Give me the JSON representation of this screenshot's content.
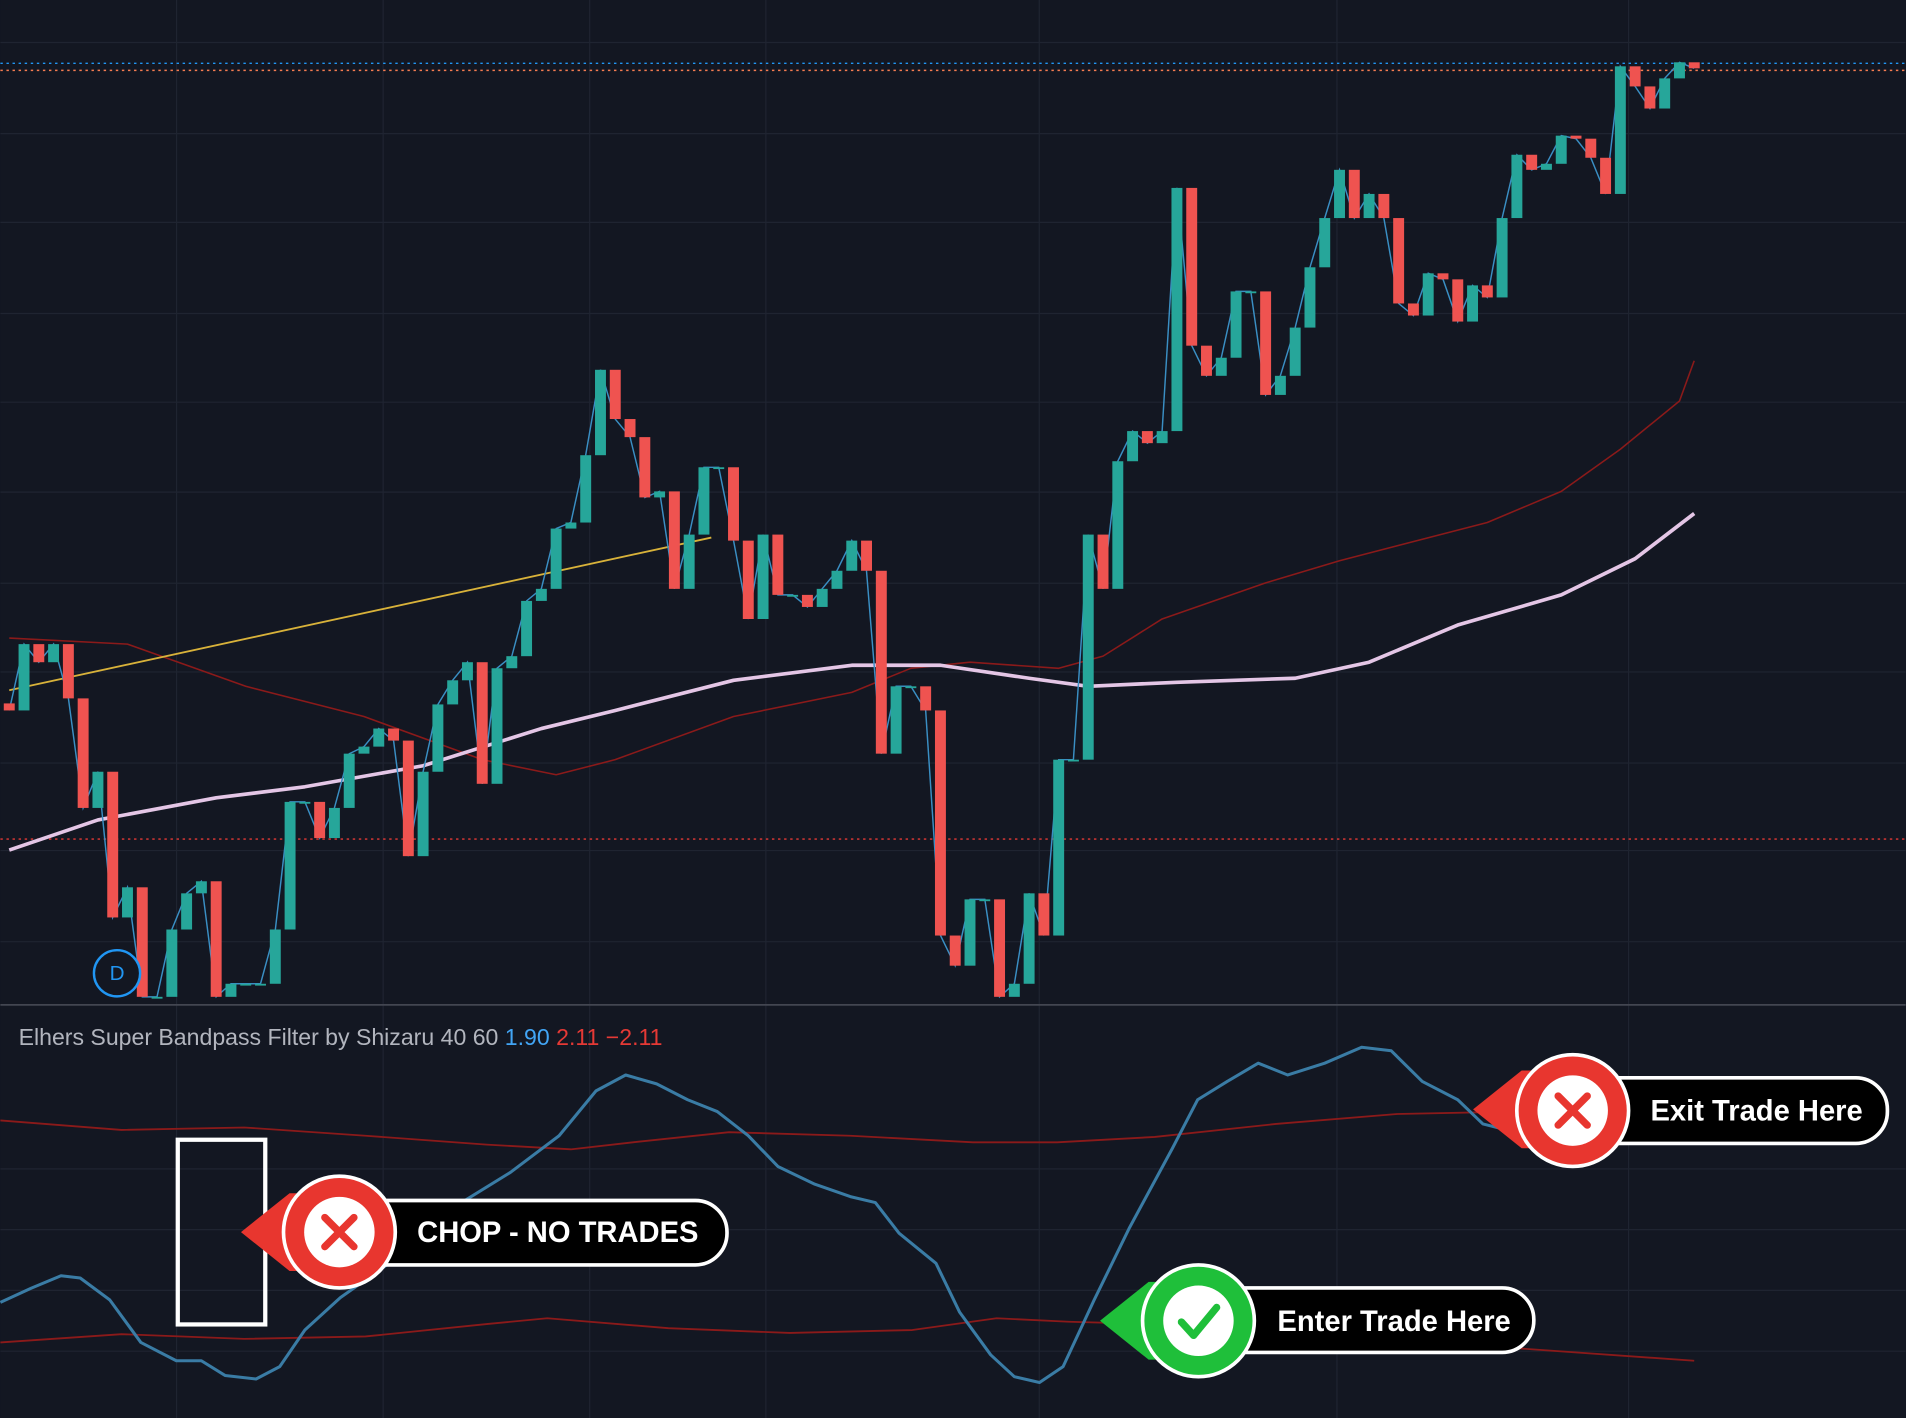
{
  "chart_data": [
    {
      "type": "candlestick",
      "xlim": [
        -0.6,
        128.3
      ],
      "ylim": [
        0,
        100
      ],
      "up_color": "#26a69a",
      "down_color": "#ef5350",
      "close_line_color": "#3a8fc4",
      "open": [
        30.0,
        29.3,
        35.9,
        34.1,
        35.9,
        30.5,
        19.6,
        23.2,
        8.7,
        11.7,
        0.8,
        0.8,
        7.5,
        11.1,
        12.3,
        0.8,
        2.1,
        2.1,
        2.1,
        7.5,
        20.2,
        20.2,
        16.6,
        19.6,
        25.0,
        25.7,
        27.5,
        26.3,
        14.8,
        23.2,
        29.9,
        32.3,
        34.1,
        22.0,
        33.5,
        34.7,
        40.2,
        41.4,
        47.4,
        48.0,
        54.7,
        63.2,
        58.3,
        56.5,
        50.5,
        51.1,
        41.4,
        46.8,
        53.5,
        53.5,
        46.2,
        38.4,
        46.8,
        40.8,
        40.8,
        39.6,
        41.4,
        43.2,
        46.2,
        43.2,
        25.0,
        31.7,
        31.7,
        29.3,
        6.9,
        3.9,
        10.5,
        10.5,
        0.8,
        2.1,
        11.1,
        6.9,
        24.4,
        24.4,
        46.8,
        41.4,
        54.1,
        57.1,
        55.9,
        57.1,
        81.3,
        65.6,
        62.6,
        64.4,
        71.0,
        71.0,
        60.7,
        62.6,
        67.4,
        73.4,
        78.3,
        83.1,
        78.3,
        80.7,
        78.3,
        69.8,
        68.6,
        72.8,
        72.2,
        68.0,
        71.6,
        70.4,
        78.3,
        84.6,
        83.1,
        83.7,
        86.5,
        86.2,
        84.3,
        80.7,
        93.4,
        91.4,
        89.2,
        92.2,
        93.8
      ],
      "close": [
        29.3,
        35.9,
        34.1,
        35.9,
        30.5,
        19.6,
        23.2,
        8.7,
        11.7,
        0.8,
        0.8,
        7.5,
        11.1,
        12.3,
        0.8,
        2.1,
        2.1,
        2.1,
        7.5,
        20.2,
        20.2,
        16.6,
        19.6,
        25.0,
        25.7,
        27.5,
        26.3,
        14.8,
        23.2,
        29.9,
        32.3,
        34.1,
        22.0,
        33.5,
        34.7,
        40.2,
        41.4,
        47.4,
        48.0,
        54.7,
        63.2,
        58.3,
        56.5,
        50.5,
        51.1,
        41.4,
        46.8,
        53.5,
        53.5,
        46.2,
        38.4,
        46.8,
        40.8,
        40.8,
        39.6,
        41.4,
        43.2,
        46.2,
        43.2,
        25.0,
        31.7,
        31.7,
        29.3,
        6.9,
        3.9,
        10.5,
        10.5,
        0.8,
        2.1,
        11.1,
        6.9,
        24.4,
        24.4,
        46.8,
        41.4,
        54.1,
        57.1,
        55.9,
        57.1,
        81.3,
        65.6,
        62.6,
        64.4,
        71.0,
        71.0,
        60.7,
        62.6,
        67.4,
        73.4,
        78.3,
        83.1,
        78.3,
        80.7,
        78.3,
        69.8,
        68.6,
        72.8,
        72.2,
        68.0,
        71.6,
        70.4,
        78.3,
        84.6,
        83.1,
        83.7,
        86.5,
        86.2,
        84.3,
        80.7,
        93.4,
        91.4,
        89.2,
        92.2,
        93.8,
        93.2
      ],
      "levels": [
        {
          "value": 93.7,
          "color": "#2196f3"
        },
        {
          "value": 93.0,
          "color": "#f57c51"
        },
        {
          "value": 16.5,
          "color": "#e53935"
        }
      ],
      "series": [
        {
          "color": "#8b1a1a",
          "x": [
            0,
            8,
            16,
            24,
            32,
            37,
            41,
            49,
            57,
            61,
            65,
            71,
            74,
            78,
            85,
            90,
            100,
            105,
            109,
            113,
            114
          ],
          "values": [
            36.5,
            35.9,
            31.7,
            28.7,
            24.4,
            22.9,
            24.4,
            28.7,
            31.1,
            33.5,
            34.1,
            33.5,
            34.7,
            38.4,
            42.0,
            44.2,
            48.0,
            51.1,
            55.3,
            60.1,
            64.1
          ]
        },
        {
          "color": "#e4c6e6",
          "x": [
            0,
            6,
            14,
            20,
            28,
            36,
            41,
            49,
            57,
            63,
            69,
            73,
            79,
            87,
            92,
            98,
            105,
            110,
            114
          ],
          "values": [
            15.4,
            18.4,
            20.6,
            21.7,
            23.8,
            27.5,
            29.3,
            32.3,
            33.8,
            33.8,
            32.5,
            31.7,
            32.1,
            32.5,
            34.1,
            37.8,
            40.8,
            44.4,
            48.9
          ]
        },
        {
          "color": "#d8b23a",
          "x": [
            0,
            47.5
          ],
          "values": [
            31.3,
            46.5
          ]
        }
      ]
    },
    {
      "type": "line",
      "title": "Elhers Super Bandpass Filter by Shizaru 40 60",
      "legend_values": [
        "1.90",
        "2.11",
        "−2.11"
      ],
      "xlim": [
        -0.6,
        128.3
      ],
      "ylim": [
        -3.08,
        3.65
      ],
      "series": [
        {
          "color": "#3a7ca5",
          "x": [
            -0.6,
            1.5,
            3.5,
            4.8,
            6.8,
            8.9,
            11.3,
            13.0,
            14.6,
            16.7,
            18.3,
            20.0,
            22.4,
            25.7,
            30.6,
            33.9,
            37.2,
            39.7,
            41.7,
            43.8,
            45.9,
            47.9,
            50.0,
            52.0,
            54.5,
            56.9,
            58.6,
            60.2,
            62.7,
            64.3,
            66.4,
            68.0,
            69.7,
            71.3,
            73.4,
            75.8,
            78.7,
            80.4,
            82.4,
            84.5,
            86.5,
            89.0,
            91.5,
            93.5,
            95.6,
            98.0,
            99.7,
            101.3,
            114
          ],
          "values": [
            -1.12,
            -0.88,
            -0.67,
            -0.71,
            -1.08,
            -1.8,
            -2.11,
            -2.11,
            -2.36,
            -2.42,
            -2.21,
            -1.59,
            -1.04,
            -0.46,
            0.57,
            1.08,
            1.7,
            2.46,
            2.73,
            2.58,
            2.31,
            2.11,
            1.7,
            1.18,
            0.88,
            0.67,
            0.57,
            0.05,
            -0.46,
            -1.29,
            -2.01,
            -2.38,
            -2.48,
            -2.21,
            -1.08,
            0.15,
            1.49,
            2.31,
            2.62,
            2.93,
            2.73,
            2.93,
            3.2,
            3.14,
            2.62,
            2.31,
            1.9,
            1.8,
            1.9
          ]
        },
        {
          "color": "#8b1a1a",
          "x": [
            -0.6,
            7.6,
            15.9,
            24.1,
            32.3,
            38.0,
            42.2,
            48.7,
            56.9,
            65.2,
            70.9,
            77.5,
            85.7,
            93.9,
            102.1,
            114
          ],
          "values": [
            1.96,
            1.8,
            1.84,
            1.7,
            1.55,
            1.47,
            1.59,
            1.76,
            1.7,
            1.59,
            1.59,
            1.68,
            1.9,
            2.07,
            2.11,
            2.11
          ]
        },
        {
          "color": "#8b1a1a",
          "x": [
            -0.6,
            7.6,
            15.9,
            24.1,
            32.3,
            36.4,
            44.6,
            52.8,
            61.1,
            66.8,
            71.7,
            77.5,
            85.7,
            93.9,
            102.1,
            114
          ],
          "values": [
            -1.8,
            -1.66,
            -1.74,
            -1.7,
            -1.49,
            -1.39,
            -1.56,
            -1.64,
            -1.59,
            -1.39,
            -1.45,
            -1.49,
            -1.59,
            -1.74,
            -1.9,
            -2.11
          ]
        }
      ]
    }
  ],
  "annotations": {
    "marker": "D",
    "chop": "CHOP - NO TRADES",
    "enter": "Enter Trade Here",
    "exit": "Exit Trade Here"
  }
}
